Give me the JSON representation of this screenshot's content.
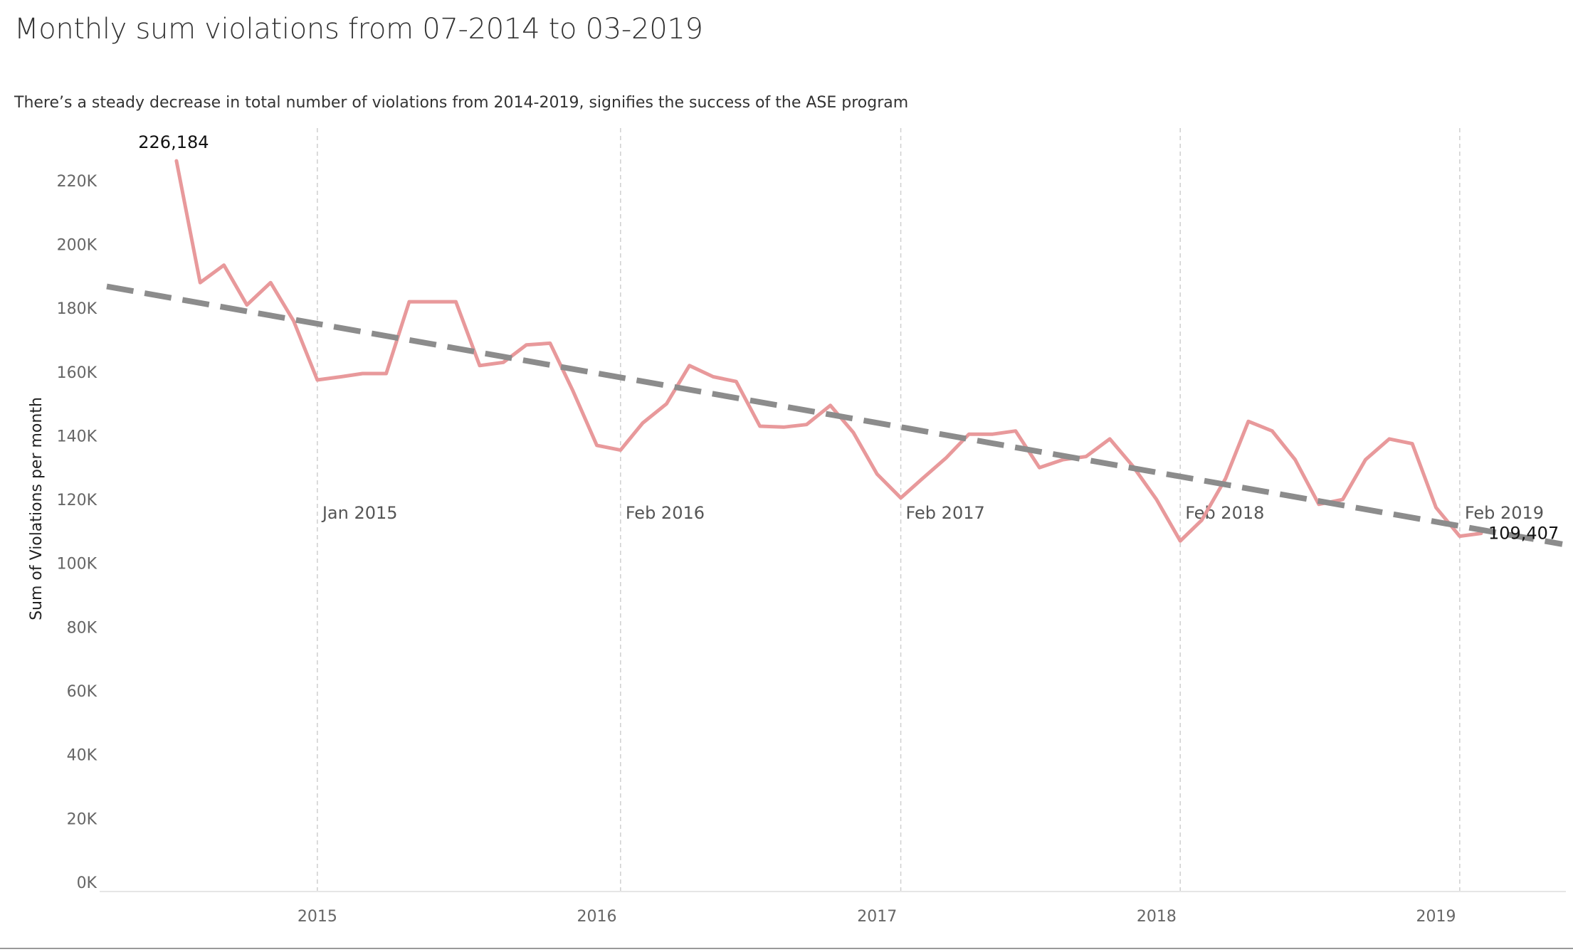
{
  "title": "Monthly sum violations from 07-2014 to 03-2019",
  "subtitle": "There’s a steady decrease in total number of violations from 2014-2019, signifies the success of the ASE program",
  "colors": {
    "series": "#e8999b",
    "trend": "#8c8c8c",
    "refline": "#cfcfcf",
    "axis": "#e6e6e6"
  },
  "chart_data": {
    "type": "line",
    "ylabel": "Sum of Violations per month",
    "ylim": [
      0,
      232000
    ],
    "y_ticks": [
      {
        "value": 0,
        "label": "0K"
      },
      {
        "value": 20000,
        "label": "20K"
      },
      {
        "value": 40000,
        "label": "40K"
      },
      {
        "value": 60000,
        "label": "60K"
      },
      {
        "value": 80000,
        "label": "80K"
      },
      {
        "value": 100000,
        "label": "100K"
      },
      {
        "value": 120000,
        "label": "120K"
      },
      {
        "value": 140000,
        "label": "140K"
      },
      {
        "value": 160000,
        "label": "160K"
      },
      {
        "value": 180000,
        "label": "180K"
      },
      {
        "value": 200000,
        "label": "200K"
      },
      {
        "value": 220000,
        "label": "220K"
      }
    ],
    "x_range": [
      "2014-04-01",
      "2019-06-15"
    ],
    "x_ticks": [
      {
        "date": "2015-01-01",
        "label": "2015"
      },
      {
        "date": "2016-01-01",
        "label": "2016"
      },
      {
        "date": "2017-01-01",
        "label": "2017"
      },
      {
        "date": "2018-01-01",
        "label": "2018"
      },
      {
        "date": "2019-01-01",
        "label": "2019"
      }
    ],
    "reference_lines": [
      {
        "date": "2015-01-01",
        "label": "Jan 2015"
      },
      {
        "date": "2016-02-01",
        "label": "Feb 2016"
      },
      {
        "date": "2017-02-01",
        "label": "Feb 2017"
      },
      {
        "date": "2018-02-01",
        "label": "Feb 2018"
      },
      {
        "date": "2019-02-01",
        "label": "Feb 2019"
      }
    ],
    "series": [
      {
        "x": [
          "2014-07",
          "2014-08",
          "2014-09",
          "2014-10",
          "2014-11",
          "2014-12",
          "2015-01",
          "2015-02",
          "2015-03",
          "2015-04",
          "2015-05",
          "2015-06",
          "2015-07",
          "2015-08",
          "2015-09",
          "2015-10",
          "2015-11",
          "2015-12",
          "2016-01",
          "2016-02",
          "2016-03",
          "2016-04",
          "2016-05",
          "2016-06",
          "2016-07",
          "2016-08",
          "2016-09",
          "2016-10",
          "2016-11",
          "2016-12",
          "2017-01",
          "2017-02",
          "2017-03",
          "2017-04",
          "2017-05",
          "2017-06",
          "2017-07",
          "2017-08",
          "2017-09",
          "2017-10",
          "2017-11",
          "2017-12",
          "2018-01",
          "2018-02",
          "2018-03",
          "2018-04",
          "2018-05",
          "2018-06",
          "2018-07",
          "2018-08",
          "2018-09",
          "2018-10",
          "2018-11",
          "2018-12",
          "2019-01",
          "2019-02",
          "2019-03"
        ],
        "values": [
          226184,
          188000,
          193500,
          181000,
          188000,
          176000,
          157500,
          158500,
          159500,
          159500,
          182000,
          182000,
          182000,
          162000,
          163000,
          168500,
          169000,
          154000,
          137000,
          135500,
          144000,
          150000,
          162000,
          158500,
          157000,
          143000,
          142700,
          143500,
          149500,
          141000,
          128000,
          120500,
          126500,
          133000,
          140500,
          140500,
          141500,
          130000,
          132500,
          133500,
          139000,
          130500,
          120000,
          107000,
          113500,
          126500,
          144500,
          141500,
          132500,
          118500,
          120000,
          132500,
          139000,
          137500,
          117500,
          108500,
          109407
        ]
      }
    ],
    "trend_line": {
      "start": [
        "2014-04-01",
        186800
      ],
      "end": [
        "2019-06-15",
        106000
      ]
    },
    "annotations": [
      {
        "x": "2014-07",
        "text": "226,184"
      },
      {
        "x": "2019-03",
        "text": "109,407"
      }
    ]
  }
}
